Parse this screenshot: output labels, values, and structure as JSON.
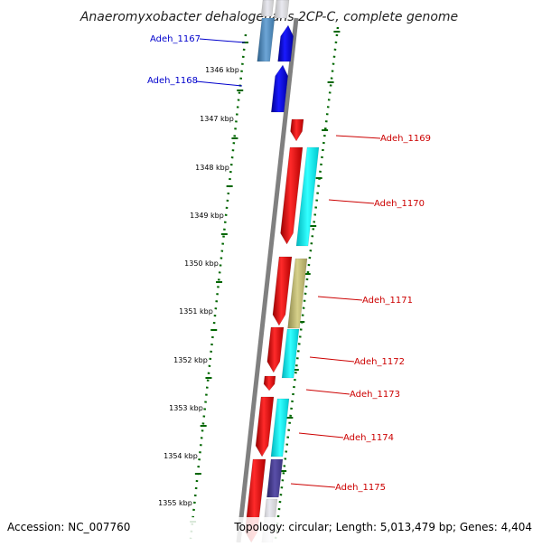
{
  "title": "Anaeromyxobacter dehalogenans 2CP-C, complete genome",
  "footer": {
    "accession": "Accession: NC_007760",
    "topology": "Topology: circular; Length: 5,013,479 bp; Genes: 4,404"
  },
  "scale_marks": [
    {
      "label": "1346 kbp"
    },
    {
      "label": "1347 kbp"
    },
    {
      "label": "1348 kbp"
    },
    {
      "label": "1349 kbp"
    },
    {
      "label": "1350 kbp"
    },
    {
      "label": "1351 kbp"
    },
    {
      "label": "1352 kbp"
    },
    {
      "label": "1353 kbp"
    },
    {
      "label": "1354 kbp"
    },
    {
      "label": "1355 kbp"
    }
  ],
  "genes": [
    {
      "label": "Adeh_1167",
      "strand": "forward",
      "color": "#0000cc"
    },
    {
      "label": "Adeh_1168",
      "strand": "forward",
      "color": "#0000cc"
    },
    {
      "label": "Adeh_1169",
      "strand": "reverse",
      "color": "#cc0000"
    },
    {
      "label": "Adeh_1170",
      "strand": "reverse",
      "color": "#cc0000"
    },
    {
      "label": "Adeh_1171",
      "strand": "reverse",
      "color": "#cc0000"
    },
    {
      "label": "Adeh_1172",
      "strand": "reverse",
      "color": "#cc0000"
    },
    {
      "label": "Adeh_1173",
      "strand": "reverse",
      "color": "#cc0000"
    },
    {
      "label": "Adeh_1174",
      "strand": "reverse",
      "color": "#cc0000"
    },
    {
      "label": "Adeh_1175",
      "strand": "reverse",
      "color": "#cc0000"
    }
  ],
  "colors": {
    "backbone": "#808080",
    "scale_dots": "#006600",
    "gene_arrow": "#ff0000",
    "forward_arrow": "#0000ee",
    "cog_cyan": "#00e5ee",
    "cog_olive": "#bdb76b",
    "cog_slate": "#483d8b",
    "cog_steel": "#4682b4"
  }
}
